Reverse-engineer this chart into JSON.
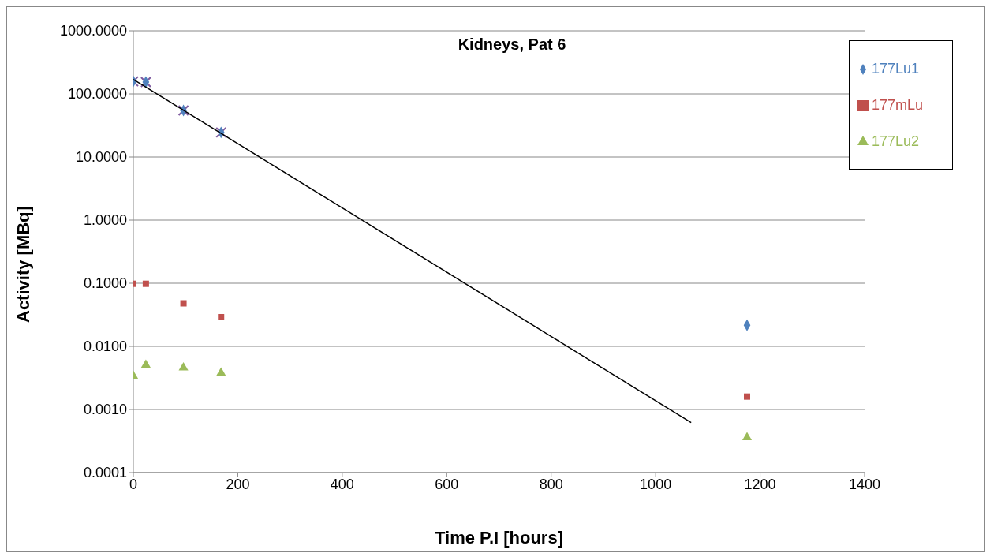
{
  "chart_data": {
    "type": "scatter",
    "title": "Kidneys, Pat 6",
    "xlabel": "Time P.I [hours]",
    "ylabel": "Activity [MBq]",
    "log": "y",
    "grid": "y",
    "legend": "top right",
    "xlim": [
      0,
      1400
    ],
    "xticks": [
      0,
      200,
      400,
      600,
      800,
      1000,
      1200,
      1400
    ],
    "ylim": [
      0.0001,
      1000
    ],
    "yticks": [
      {
        "value": 0.0001,
        "label": "0.0001"
      },
      {
        "value": 0.001,
        "label": "0.0010"
      },
      {
        "value": 0.01,
        "label": "0.0100"
      },
      {
        "value": 0.1,
        "label": "0.1000"
      },
      {
        "value": 1,
        "label": "1.0000"
      },
      {
        "value": 10,
        "label": "10.0000"
      },
      {
        "value": 100,
        "label": "100.0000"
      },
      {
        "value": 1000,
        "label": "1000.0000"
      }
    ],
    "series": [
      {
        "color": "#7e5a9f",
        "marker": "cross",
        "x": [
          0,
          24,
          96,
          168
        ],
        "values": [
          158,
          154,
          54.6,
          24.5
        ]
      },
      {
        "name": "177Lu1",
        "color": "#4f81bd",
        "marker": "diamond",
        "x": [
          0,
          24,
          96,
          168,
          1175
        ],
        "values": [
          158,
          154,
          54.6,
          24.5,
          0.0216
        ]
      },
      {
        "name": "177mLu",
        "color": "#c0504d",
        "marker": "square",
        "x": [
          0,
          24,
          96,
          168,
          1175
        ],
        "values": [
          0.098,
          0.098,
          0.048,
          0.029,
          0.0016
        ]
      },
      {
        "name": "177Lu2",
        "color": "#9bbb59",
        "marker": "triangle",
        "x": [
          0,
          24,
          96,
          168,
          1175
        ],
        "values": [
          0.0034,
          0.0051,
          0.0046,
          0.0038,
          0.00036
        ]
      },
      {
        "type": "line",
        "color": "#000000",
        "marker": "none",
        "x": [
          0,
          1068
        ],
        "values": [
          170,
          0.00062
        ]
      }
    ]
  }
}
